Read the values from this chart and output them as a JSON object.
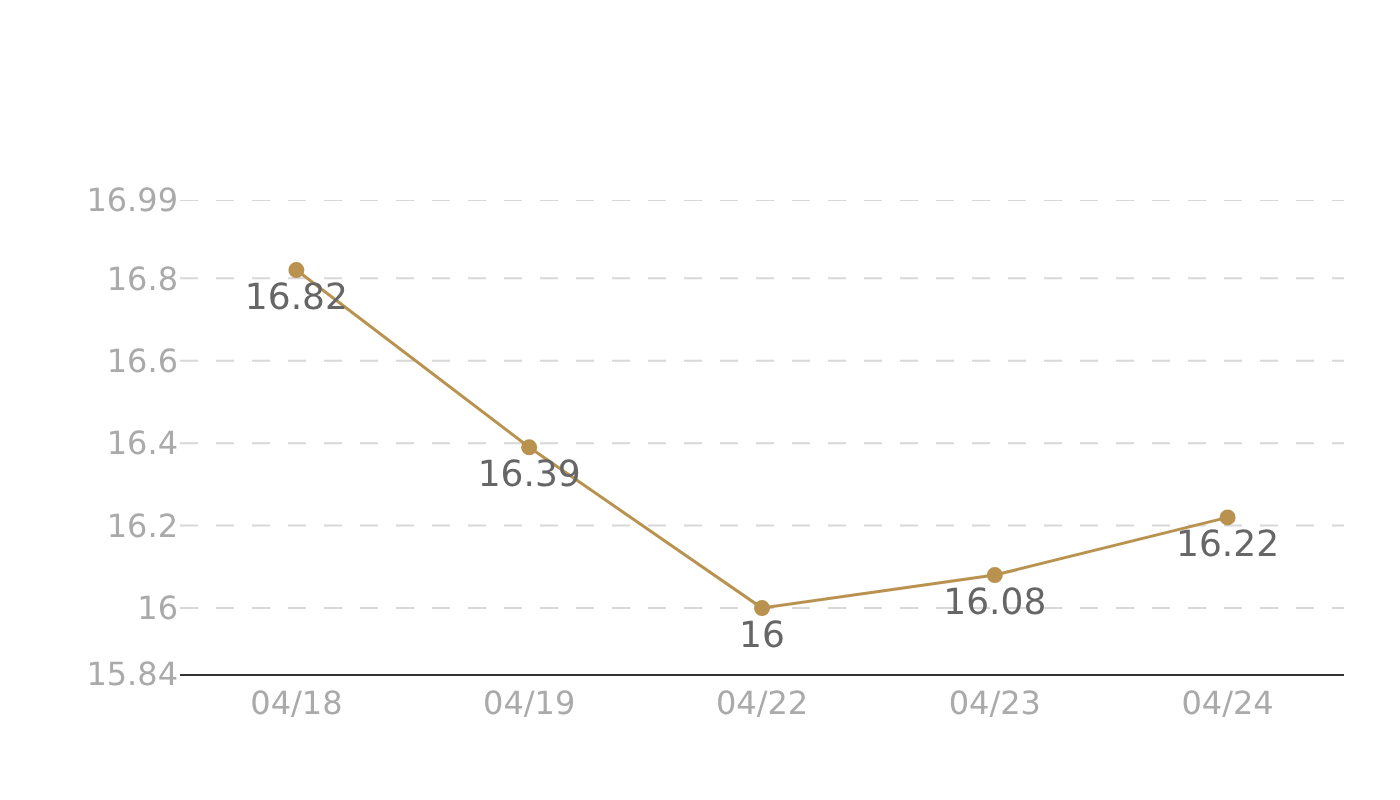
{
  "chart_data": {
    "type": "line",
    "categories": [
      "04/18",
      "04/19",
      "04/22",
      "04/23",
      "04/24"
    ],
    "series": [
      {
        "color": "#b8924e",
        "values": [
          16.82,
          16.39,
          16,
          16.08,
          16.22
        ]
      }
    ],
    "ylim": [
      15.84,
      16.99
    ],
    "yticks": [
      15.84,
      16,
      16.2,
      16.4,
      16.6,
      16.8,
      16.99
    ],
    "grid": "y",
    "marker": "circle",
    "line_style": "solid",
    "data_labels": true
  }
}
